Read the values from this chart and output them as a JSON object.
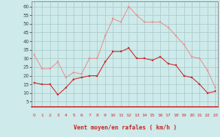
{
  "hours": [
    0,
    1,
    2,
    3,
    4,
    5,
    6,
    7,
    8,
    9,
    10,
    11,
    12,
    13,
    14,
    15,
    16,
    17,
    18,
    19,
    20,
    21,
    22,
    23
  ],
  "vent_moyen": [
    16,
    15,
    15,
    9,
    13,
    18,
    19,
    20,
    20,
    28,
    34,
    34,
    36,
    30,
    30,
    29,
    31,
    27,
    26,
    20,
    19,
    15,
    10,
    11
  ],
  "rafales": [
    32,
    24,
    24,
    28,
    19,
    22,
    21,
    30,
    30,
    43,
    53,
    51,
    60,
    55,
    51,
    51,
    51,
    48,
    43,
    38,
    31,
    30,
    23,
    13
  ],
  "bg_color": "#ceeaea",
  "grid_color": "#aacccc",
  "line_moyen_color": "#cc2222",
  "line_rafales_color": "#e89090",
  "xlabel": "Vent moyen/en rafales ( km/h )",
  "yticks": [
    5,
    10,
    15,
    20,
    25,
    30,
    35,
    40,
    45,
    50,
    55,
    60
  ],
  "ylim": [
    2,
    63
  ],
  "xlim": [
    -0.3,
    23.3
  ],
  "arrow_dirs": [
    0,
    0,
    0,
    45,
    45,
    0,
    45,
    0,
    0,
    0,
    0,
    0,
    0,
    0,
    0,
    0,
    180,
    180,
    180,
    180,
    0,
    180,
    0,
    45
  ]
}
